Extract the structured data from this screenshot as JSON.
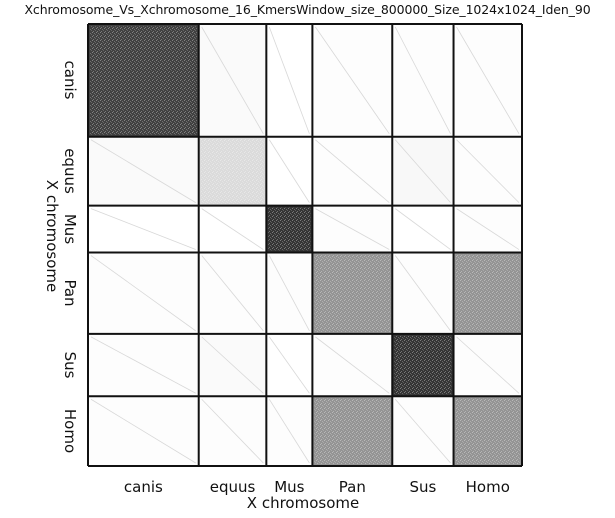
{
  "chart_data": {
    "type": "heatmap",
    "title": "Xchromosome_Vs_Xchromosome_16_KmersWindow_size_800000_Size_1024x1024_Iden_90",
    "xlabel": "X chromosome",
    "ylabel": "X chromosome",
    "x_categories": [
      "canis",
      "equus",
      "Mus",
      "Pan",
      "Sus",
      "Homo"
    ],
    "y_categories": [
      "canis",
      "equus",
      "Mus",
      "Pan",
      "Sus",
      "Homo"
    ],
    "cell_weights": [
      0.262,
      0.16,
      0.109,
      0.189,
      0.145,
      0.162
    ],
    "values": [
      [
        0.8,
        0.02,
        0.0,
        0.01,
        0.01,
        0.01
      ],
      [
        0.02,
        0.15,
        0.0,
        0.01,
        0.03,
        0.01
      ],
      [
        0.0,
        0.0,
        0.85,
        0.01,
        0.0,
        0.01
      ],
      [
        0.01,
        0.01,
        0.01,
        0.45,
        0.01,
        0.45
      ],
      [
        0.01,
        0.02,
        0.0,
        0.01,
        0.85,
        0.01
      ],
      [
        0.01,
        0.01,
        0.01,
        0.45,
        0.01,
        0.45
      ]
    ],
    "colormap": "white-to-black",
    "colors": {
      "low": "#ffffff",
      "high": "#111111",
      "grid": "#111111"
    }
  }
}
